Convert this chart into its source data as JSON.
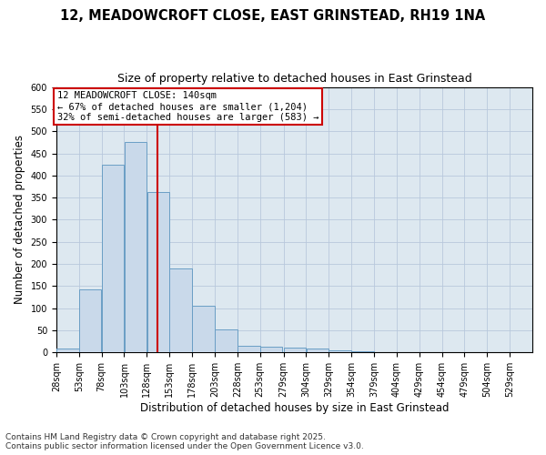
{
  "title_line1": "12, MEADOWCROFT CLOSE, EAST GRINSTEAD, RH19 1NA",
  "title_line2": "Size of property relative to detached houses in East Grinstead",
  "xlabel": "Distribution of detached houses by size in East Grinstead",
  "ylabel": "Number of detached properties",
  "bar_values": [
    8,
    142,
    424,
    475,
    362,
    190,
    105,
    53,
    15,
    13,
    10,
    8,
    4,
    2,
    0,
    1,
    0,
    0,
    0,
    1
  ],
  "bin_labels": [
    "28sqm",
    "53sqm",
    "78sqm",
    "103sqm",
    "128sqm",
    "153sqm",
    "178sqm",
    "203sqm",
    "228sqm",
    "253sqm",
    "279sqm",
    "304sqm",
    "329sqm",
    "354sqm",
    "379sqm",
    "404sqm",
    "429sqm",
    "454sqm",
    "479sqm",
    "504sqm",
    "529sqm"
  ],
  "bin_edges": [
    28,
    53,
    78,
    103,
    128,
    153,
    178,
    203,
    228,
    253,
    279,
    304,
    329,
    354,
    379,
    404,
    429,
    454,
    479,
    504,
    529
  ],
  "bar_color": "#c9d9ea",
  "bar_edge_color": "#6a9ec5",
  "vline_x": 140,
  "vline_color": "#cc0000",
  "annotation_text": "12 MEADOWCROFT CLOSE: 140sqm\n← 67% of detached houses are smaller (1,204)\n32% of semi-detached houses are larger (583) →",
  "annotation_box_color": "#ffffff",
  "annotation_box_edge": "#cc0000",
  "ylim": [
    0,
    600
  ],
  "yticks": [
    0,
    50,
    100,
    150,
    200,
    250,
    300,
    350,
    400,
    450,
    500,
    550,
    600
  ],
  "grid_color": "#b8c8dc",
  "bg_color": "#dde8f0",
  "footer_line1": "Contains HM Land Registry data © Crown copyright and database right 2025.",
  "footer_line2": "Contains public sector information licensed under the Open Government Licence v3.0.",
  "title_fontsize": 10.5,
  "subtitle_fontsize": 9,
  "axis_label_fontsize": 8.5,
  "tick_fontsize": 7,
  "annotation_fontsize": 7.5,
  "footer_fontsize": 6.5
}
